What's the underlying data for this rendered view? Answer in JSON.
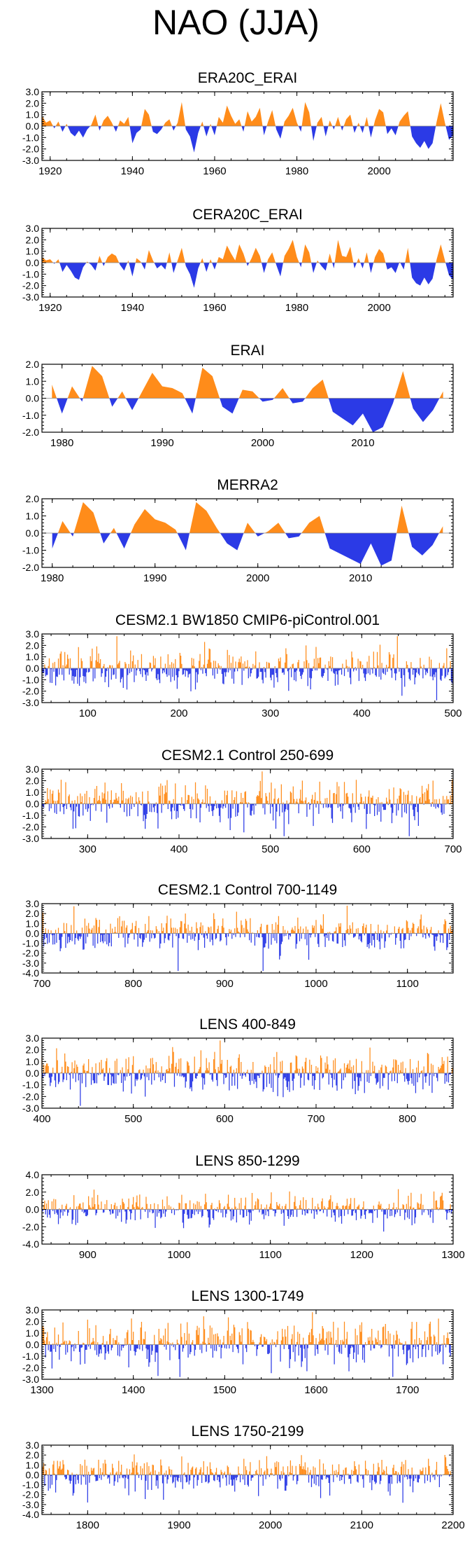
{
  "figure_title": "NAO (JJA)",
  "colors": {
    "positive": "#ff8c1a",
    "negative": "#2b3ae6",
    "axis": "#000000",
    "zero": "#888888"
  },
  "chart_data": [
    {
      "type": "area",
      "title": "ERA20C_ERAI",
      "xlim": [
        1918,
        2018
      ],
      "ylim": [
        -3,
        3
      ],
      "yticks": [
        "3.0",
        "2.0",
        "1.0",
        "0.0",
        "-1.0",
        "-2.0",
        "-3.0"
      ],
      "xticks": [
        1920,
        1940,
        1960,
        1980,
        2000
      ],
      "xtick_labels": [
        "1920",
        "1940",
        "1960",
        "1980",
        "2000"
      ],
      "series": {
        "x_start": 1918,
        "values": [
          0.9,
          0.3,
          0.5,
          -0.2,
          0.4,
          -0.5,
          0.2,
          -0.6,
          -0.9,
          -0.4,
          -1.0,
          -0.3,
          0.1,
          1.0,
          -0.4,
          0.5,
          0.9,
          0.3,
          -0.5,
          0.5,
          0.2,
          0.8,
          -1.5,
          -0.6,
          -0.3,
          1.5,
          1.0,
          -0.5,
          -0.7,
          -0.3,
          0.3,
          0.6,
          -0.4,
          0.3,
          2.1,
          -0.3,
          -0.9,
          -2.3,
          -0.6,
          0.4,
          -0.9,
          0.2,
          -0.8,
          0.8,
          0.3,
          1.8,
          0.9,
          0.2,
          0.6,
          -0.5,
          1.3,
          0.4,
          0.8,
          1.6,
          -0.8,
          0.4,
          1.4,
          -0.3,
          -1.1,
          0.4,
          0.9,
          1.6,
          0.3,
          -0.5,
          2.1,
          1.2,
          -1.3,
          0.3,
          0.8,
          -0.9,
          0.5,
          -0.3,
          0.8,
          -0.4,
          0.6,
          1.0,
          -0.6,
          0.3,
          -0.6,
          0.8,
          -1.0,
          0.5,
          1.5,
          1.2,
          -0.7,
          -0.2,
          -0.8,
          0.4,
          0.9,
          1.3,
          -0.9,
          -1.5,
          -1.9,
          -1.3,
          -2.0,
          -1.5,
          0.4,
          2.0,
          0.3,
          -1.2,
          -0.8,
          0.5
        ]
      }
    },
    {
      "type": "area",
      "title": "CERA20C_ERAI",
      "xlim": [
        1918,
        2018
      ],
      "ylim": [
        -3,
        3
      ],
      "yticks": [
        "3.0",
        "2.0",
        "1.0",
        "0.0",
        "-1.0",
        "-2.0",
        "-3.0"
      ],
      "xticks": [
        1920,
        1940,
        1960,
        1980,
        2000
      ],
      "xtick_labels": [
        "1920",
        "1940",
        "1960",
        "1980",
        "2000"
      ],
      "series": {
        "x_start": 1918,
        "values": [
          0.5,
          0.2,
          0.3,
          -0.1,
          0.3,
          -0.8,
          -0.2,
          -0.7,
          -1.3,
          -1.5,
          -0.4,
          0.1,
          -0.2,
          -0.7,
          0.6,
          -0.3,
          0.5,
          0.8,
          0.6,
          -0.2,
          -0.7,
          0.2,
          -1.2,
          0.4,
          0.1,
          -0.6,
          1.1,
          0.2,
          -0.5,
          -0.2,
          -0.6,
          0.9,
          -0.9,
          0.2,
          1.3,
          -0.3,
          -1.0,
          -2.2,
          -0.5,
          0.4,
          -0.8,
          0.3,
          -0.6,
          0.5,
          0.3,
          1.5,
          0.8,
          0.2,
          1.6,
          0.8,
          -0.3,
          0.4,
          1.3,
          0.6,
          -0.9,
          0.3,
          0.9,
          -0.2,
          -1.2,
          0.6,
          1.2,
          2.0,
          0.5,
          -0.4,
          1.6,
          0.9,
          -0.9,
          0.2,
          -0.3,
          -0.7,
          0.8,
          -0.5,
          2.0,
          0.6,
          0.5,
          1.4,
          -0.5,
          0.4,
          -0.5,
          0.9,
          -0.9,
          0.5,
          1.2,
          0.8,
          -0.6,
          -0.4,
          -0.9,
          0.1,
          -0.6,
          1.3,
          -1.3,
          -1.8,
          -2.0,
          -1.3,
          -1.9,
          -1.4,
          0.3,
          1.6,
          0.2,
          -1.1,
          -1.5,
          0.3
        ]
      }
    },
    {
      "type": "area",
      "title": "ERAI",
      "xlim": [
        1978,
        2019
      ],
      "ylim": [
        -2,
        2
      ],
      "yticks": [
        "2.0",
        "1.0",
        "0.0",
        "-1.0",
        "-2.0"
      ],
      "xticks": [
        1980,
        1990,
        2000,
        2010
      ],
      "xtick_labels": [
        "1980",
        "1990",
        "2000",
        "2010"
      ],
      "series": {
        "x_start": 1979,
        "values": [
          0.8,
          -0.9,
          0.7,
          -0.2,
          1.9,
          1.3,
          -0.5,
          0.4,
          -0.7,
          0.4,
          1.5,
          0.7,
          0.6,
          0.3,
          -0.9,
          1.8,
          1.3,
          -0.5,
          -0.9,
          0.5,
          0.4,
          -0.2,
          -0.1,
          0.6,
          -0.3,
          -0.2,
          0.6,
          1.1,
          -0.8,
          -1.2,
          -1.6,
          -0.9,
          -2.0,
          -1.7,
          -0.3,
          1.6,
          -0.6,
          -1.4,
          -0.7,
          0.4
        ]
      }
    },
    {
      "type": "area",
      "title": "MERRA2",
      "xlim": [
        1979,
        2019
      ],
      "ylim": [
        -2,
        2
      ],
      "yticks": [
        "2.0",
        "1.0",
        "0.0",
        "-1.0",
        "-2.0"
      ],
      "xticks": [
        1980,
        1990,
        2000,
        2010
      ],
      "xtick_labels": [
        "1980",
        "1990",
        "2000",
        "2010"
      ],
      "series": {
        "x_start": 1980,
        "values": [
          -0.9,
          0.7,
          -0.2,
          1.8,
          1.2,
          -0.6,
          0.3,
          -0.9,
          0.5,
          1.4,
          0.8,
          0.6,
          0.2,
          -1.0,
          1.8,
          1.3,
          0.3,
          -0.6,
          -1.0,
          0.6,
          -0.2,
          0.1,
          0.6,
          -0.3,
          -0.2,
          0.6,
          1.0,
          -0.9,
          -1.2,
          -1.5,
          -1.8,
          -0.6,
          -1.9,
          -1.6,
          1.6,
          -0.8,
          -1.3,
          -0.7,
          0.4
        ]
      }
    },
    {
      "type": "bar",
      "title": "CESM2.1 BW1850 CMIP6-piControl.001",
      "xlim": [
        50,
        500
      ],
      "ylim": [
        -3,
        3
      ],
      "yticks": [
        "3.0",
        "2.0",
        "1.0",
        "0.0",
        "-1.0",
        "-2.0",
        "-3.0"
      ],
      "xticks": [
        100,
        200,
        300,
        400,
        500
      ],
      "xtick_labels": [
        "100",
        "200",
        "300",
        "400",
        "500"
      ],
      "series": {
        "x_start": 50,
        "count": 450,
        "seed": 11,
        "amp": 0.8
      }
    },
    {
      "type": "bar",
      "title": "CESM2.1 Control 250-699",
      "xlim": [
        250,
        700
      ],
      "ylim": [
        -3,
        3
      ],
      "yticks": [
        "3.0",
        "2.0",
        "1.0",
        "0.0",
        "-1.0",
        "-2.0",
        "-3.0"
      ],
      "xticks": [
        300,
        400,
        500,
        600,
        700
      ],
      "xtick_labels": [
        "300",
        "400",
        "500",
        "600",
        "700"
      ],
      "series": {
        "x_start": 250,
        "count": 450,
        "seed": 23,
        "amp": 0.85
      }
    },
    {
      "type": "bar",
      "title": "CESM2.1 Control 700-1149",
      "xlim": [
        700,
        1150
      ],
      "ylim": [
        -4,
        3
      ],
      "yticks": [
        "3.0",
        "2.0",
        "1.0",
        "0.0",
        "-1.0",
        "-2.0",
        "-3.0",
        "-4.0"
      ],
      "xticks": [
        700,
        800,
        900,
        1000,
        1100
      ],
      "xtick_labels": [
        "700",
        "800",
        "900",
        "1000",
        "1100"
      ],
      "series": {
        "x_start": 700,
        "count": 450,
        "seed": 37,
        "amp": 0.85
      }
    },
    {
      "type": "bar",
      "title": "LENS 400-849",
      "xlim": [
        400,
        850
      ],
      "ylim": [
        -3,
        3
      ],
      "yticks": [
        "3.0",
        "2.0",
        "1.0",
        "0.0",
        "-1.0",
        "-2.0",
        "-3.0"
      ],
      "xticks": [
        400,
        500,
        600,
        700,
        800
      ],
      "xtick_labels": [
        "400",
        "500",
        "600",
        "700",
        "800"
      ],
      "series": {
        "x_start": 400,
        "count": 450,
        "seed": 41,
        "amp": 0.85
      }
    },
    {
      "type": "bar",
      "title": "LENS 850-1299",
      "xlim": [
        850,
        1300
      ],
      "ylim": [
        -4,
        4
      ],
      "yticks": [
        "4.0",
        "2.0",
        "0.0",
        "-2.0",
        "-4.0"
      ],
      "xticks": [
        900,
        1000,
        1100,
        1200,
        1300
      ],
      "xtick_labels": [
        "900",
        "1000",
        "1100",
        "1200",
        "1300"
      ],
      "series": {
        "x_start": 850,
        "count": 450,
        "seed": 53,
        "amp": 0.85
      }
    },
    {
      "type": "bar",
      "title": "LENS 1300-1749",
      "xlim": [
        1300,
        1750
      ],
      "ylim": [
        -3,
        3
      ],
      "yticks": [
        "3.0",
        "2.0",
        "1.0",
        "0.0",
        "-1.0",
        "-2.0",
        "-3.0"
      ],
      "xticks": [
        1300,
        1400,
        1500,
        1600,
        1700
      ],
      "xtick_labels": [
        "1300",
        "1400",
        "1500",
        "1600",
        "1700"
      ],
      "series": {
        "x_start": 1300,
        "count": 450,
        "seed": 67,
        "amp": 0.85
      }
    },
    {
      "type": "bar",
      "title": "LENS 1750-2199",
      "xlim": [
        1750,
        2200
      ],
      "ylim": [
        -4,
        3
      ],
      "yticks": [
        "3.0",
        "2.0",
        "1.0",
        "0.0",
        "-1.0",
        "-2.0",
        "-3.0",
        "-4.0"
      ],
      "xticks": [
        1800,
        1900,
        2000,
        2100,
        2200
      ],
      "xtick_labels": [
        "1800",
        "1900",
        "2000",
        "2100",
        "2200"
      ],
      "series": {
        "x_start": 1750,
        "count": 450,
        "seed": 79,
        "amp": 0.85
      }
    }
  ]
}
